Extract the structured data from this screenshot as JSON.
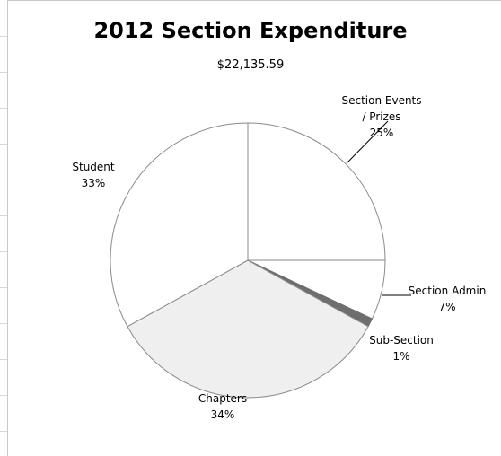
{
  "chart_data": {
    "type": "pie",
    "title": "2012 Section Expenditure",
    "subtitle": "$22,135.59",
    "slices": [
      {
        "label_lines": [
          "Section Events",
          "/ Prizes"
        ],
        "percent_label": "25%",
        "value": 25,
        "color": "#ffffff",
        "stroke": "#8a8a8a"
      },
      {
        "label_lines": [
          "Section Admin"
        ],
        "percent_label": "7%",
        "value": 7,
        "color": "#ffffff",
        "stroke": "#8a8a8a"
      },
      {
        "label_lines": [
          "Sub-Section"
        ],
        "percent_label": "1%",
        "value": 1,
        "color": "#6e6e6e",
        "stroke": "#6e6e6e"
      },
      {
        "label_lines": [
          "Chapters"
        ],
        "percent_label": "34%",
        "value": 34,
        "color": "#efefef",
        "stroke": "#8a8a8a"
      },
      {
        "label_lines": [
          "Student"
        ],
        "percent_label": "33%",
        "value": 33,
        "color": "#ffffff",
        "stroke": "#8a8a8a"
      }
    ],
    "start_angle_deg": 0,
    "direction": "clockwise",
    "legend": "none"
  }
}
